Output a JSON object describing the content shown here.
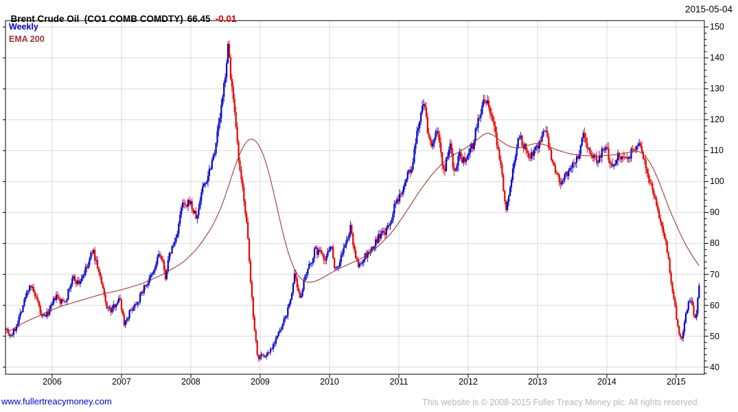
{
  "header": {
    "title_name": "Brent Crude Oil  (CO1 COMB COMDTY)",
    "last_price_label": "66.45",
    "change_label": "-0.01",
    "date": "2015-05-04"
  },
  "legend": {
    "series": "Weekly",
    "overlay": "EMA 200"
  },
  "footer": {
    "site_link": "www.fullertreacymoney.com",
    "copyright": "This website is © 2008-2015 Fuller Treacy Money plc. All rights reserved."
  },
  "colors": {
    "up": "#0000d0",
    "down": "#e80000",
    "ema": "#9c3a34",
    "grid": "#d8d8d8",
    "frame": "#000000",
    "title_text": "#000000",
    "change_text": "#dd0000",
    "legend_series": "#0000cc",
    "legend_overlay": "#993333",
    "link": "#0000cc",
    "copyright_text": "#b6b6b6"
  },
  "chart_data": {
    "type": "bar",
    "subtype": "weekly-ohlc-candles",
    "title": "Brent Crude Oil (CO1 COMB COMDTY)",
    "timeframe": "Weekly",
    "overlay": "EMA 200",
    "last_close": 66.45,
    "last_change": -0.01,
    "x_ticks": [
      2006,
      2007,
      2008,
      2009,
      2010,
      2011,
      2012,
      2013,
      2014,
      2015
    ],
    "y_ticks": [
      40,
      50,
      60,
      70,
      80,
      90,
      100,
      110,
      120,
      130,
      140,
      150
    ],
    "xlim": [
      2005.327,
      2015.406
    ],
    "ylim": [
      37.7,
      152.05
    ],
    "grid": true,
    "weeks": 522,
    "noise": 1.0,
    "close_path": [
      [
        2005.33,
        53
      ],
      [
        2005.4,
        50
      ],
      [
        2005.46,
        52
      ],
      [
        2005.55,
        58
      ],
      [
        2005.62,
        63
      ],
      [
        2005.68,
        67
      ],
      [
        2005.75,
        63
      ],
      [
        2005.8,
        60
      ],
      [
        2005.85,
        56
      ],
      [
        2005.92,
        57
      ],
      [
        2005.98,
        59
      ],
      [
        2006.05,
        63
      ],
      [
        2006.12,
        61
      ],
      [
        2006.2,
        62
      ],
      [
        2006.3,
        69
      ],
      [
        2006.38,
        67
      ],
      [
        2006.45,
        70
      ],
      [
        2006.52,
        73
      ],
      [
        2006.58,
        78
      ],
      [
        2006.65,
        73
      ],
      [
        2006.72,
        66
      ],
      [
        2006.78,
        60
      ],
      [
        2006.85,
        58
      ],
      [
        2006.92,
        61
      ],
      [
        2006.98,
        62
      ],
      [
        2007.04,
        54
      ],
      [
        2007.1,
        57
      ],
      [
        2007.18,
        60
      ],
      [
        2007.25,
        62
      ],
      [
        2007.33,
        66
      ],
      [
        2007.4,
        68
      ],
      [
        2007.47,
        71
      ],
      [
        2007.54,
        77
      ],
      [
        2007.6,
        73
      ],
      [
        2007.63,
        69
      ],
      [
        2007.7,
        77
      ],
      [
        2007.78,
        81
      ],
      [
        2007.84,
        88
      ],
      [
        2007.88,
        93
      ],
      [
        2007.93,
        91
      ],
      [
        2007.98,
        94
      ],
      [
        2008.04,
        90
      ],
      [
        2008.09,
        88
      ],
      [
        2008.16,
        98
      ],
      [
        2008.22,
        100
      ],
      [
        2008.28,
        105
      ],
      [
        2008.34,
        110
      ],
      [
        2008.4,
        118
      ],
      [
        2008.46,
        127
      ],
      [
        2008.51,
        138
      ],
      [
        2008.54,
        144
      ],
      [
        2008.58,
        133
      ],
      [
        2008.62,
        124
      ],
      [
        2008.66,
        114
      ],
      [
        2008.71,
        102
      ],
      [
        2008.76,
        96
      ],
      [
        2008.81,
        85
      ],
      [
        2008.86,
        68
      ],
      [
        2008.9,
        57
      ],
      [
        2008.94,
        48
      ],
      [
        2008.97,
        42
      ],
      [
        2009.01,
        45
      ],
      [
        2009.05,
        43
      ],
      [
        2009.09,
        44
      ],
      [
        2009.13,
        45
      ],
      [
        2009.18,
        47
      ],
      [
        2009.24,
        50
      ],
      [
        2009.3,
        52
      ],
      [
        2009.36,
        56
      ],
      [
        2009.42,
        60
      ],
      [
        2009.46,
        65
      ],
      [
        2009.5,
        70
      ],
      [
        2009.54,
        64
      ],
      [
        2009.58,
        63
      ],
      [
        2009.64,
        68
      ],
      [
        2009.7,
        72
      ],
      [
        2009.75,
        75
      ],
      [
        2009.79,
        78
      ],
      [
        2009.84,
        77
      ],
      [
        2009.89,
        78
      ],
      [
        2009.94,
        74
      ],
      [
        2009.98,
        78
      ],
      [
        2010.02,
        80
      ],
      [
        2010.07,
        73
      ],
      [
        2010.12,
        72
      ],
      [
        2010.18,
        77
      ],
      [
        2010.24,
        80
      ],
      [
        2010.3,
        85
      ],
      [
        2010.36,
        78
      ],
      [
        2010.41,
        72
      ],
      [
        2010.46,
        74
      ],
      [
        2010.52,
        76
      ],
      [
        2010.58,
        77
      ],
      [
        2010.64,
        79
      ],
      [
        2010.7,
        82
      ],
      [
        2010.76,
        83
      ],
      [
        2010.82,
        84
      ],
      [
        2010.88,
        87
      ],
      [
        2010.94,
        92
      ],
      [
        2010.99,
        94
      ],
      [
        2011.04,
        97
      ],
      [
        2011.09,
        101
      ],
      [
        2011.14,
        103
      ],
      [
        2011.19,
        104
      ],
      [
        2011.24,
        112
      ],
      [
        2011.29,
        119
      ],
      [
        2011.34,
        126
      ],
      [
        2011.38,
        123
      ],
      [
        2011.42,
        115
      ],
      [
        2011.47,
        112
      ],
      [
        2011.52,
        114
      ],
      [
        2011.56,
        118
      ],
      [
        2011.6,
        110
      ],
      [
        2011.65,
        103
      ],
      [
        2011.7,
        108
      ],
      [
        2011.74,
        112
      ],
      [
        2011.78,
        105
      ],
      [
        2011.83,
        104
      ],
      [
        2011.87,
        110
      ],
      [
        2011.92,
        107
      ],
      [
        2011.97,
        108
      ],
      [
        2012.02,
        111
      ],
      [
        2012.07,
        112
      ],
      [
        2012.12,
        118
      ],
      [
        2012.17,
        122
      ],
      [
        2012.22,
        125
      ],
      [
        2012.26,
        126
      ],
      [
        2012.31,
        123
      ],
      [
        2012.36,
        119
      ],
      [
        2012.41,
        113
      ],
      [
        2012.46,
        107
      ],
      [
        2012.51,
        98
      ],
      [
        2012.55,
        91
      ],
      [
        2012.6,
        98
      ],
      [
        2012.65,
        104
      ],
      [
        2012.7,
        112
      ],
      [
        2012.74,
        115
      ],
      [
        2012.79,
        112
      ],
      [
        2012.84,
        110
      ],
      [
        2012.89,
        108
      ],
      [
        2012.94,
        110
      ],
      [
        2012.99,
        111
      ],
      [
        2013.04,
        113
      ],
      [
        2013.09,
        117
      ],
      [
        2013.14,
        114
      ],
      [
        2013.19,
        108
      ],
      [
        2013.25,
        103
      ],
      [
        2013.3,
        101
      ],
      [
        2013.35,
        99
      ],
      [
        2013.41,
        102
      ],
      [
        2013.47,
        103
      ],
      [
        2013.53,
        106
      ],
      [
        2013.58,
        108
      ],
      [
        2013.63,
        112
      ],
      [
        2013.67,
        116
      ],
      [
        2013.72,
        112
      ],
      [
        2013.77,
        109
      ],
      [
        2013.83,
        107
      ],
      [
        2013.89,
        108
      ],
      [
        2013.94,
        110
      ],
      [
        2013.99,
        111
      ],
      [
        2014.04,
        107
      ],
      [
        2014.1,
        106
      ],
      [
        2014.16,
        109
      ],
      [
        2014.22,
        108
      ],
      [
        2014.28,
        107
      ],
      [
        2014.34,
        109
      ],
      [
        2014.4,
        110
      ],
      [
        2014.45,
        113
      ],
      [
        2014.5,
        110
      ],
      [
        2014.55,
        106
      ],
      [
        2014.6,
        102
      ],
      [
        2014.65,
        98
      ],
      [
        2014.7,
        93
      ],
      [
        2014.76,
        88
      ],
      [
        2014.82,
        83
      ],
      [
        2014.86,
        79
      ],
      [
        2014.9,
        72
      ],
      [
        2014.94,
        66
      ],
      [
        2014.98,
        60
      ],
      [
        2015.02,
        53
      ],
      [
        2015.05,
        50
      ],
      [
        2015.08,
        49
      ],
      [
        2015.11,
        53
      ],
      [
        2015.14,
        57
      ],
      [
        2015.18,
        61
      ],
      [
        2015.21,
        62
      ],
      [
        2015.24,
        59
      ],
      [
        2015.27,
        55
      ],
      [
        2015.29,
        57
      ],
      [
        2015.31,
        63
      ],
      [
        2015.33,
        66.45
      ]
    ],
    "ema_path": [
      [
        2005.33,
        51
      ],
      [
        2005.6,
        54.5
      ],
      [
        2005.85,
        57
      ],
      [
        2006.1,
        59.5
      ],
      [
        2006.4,
        61.5
      ],
      [
        2006.7,
        63.5
      ],
      [
        2007.0,
        65
      ],
      [
        2007.3,
        67
      ],
      [
        2007.6,
        70
      ],
      [
        2007.9,
        74
      ],
      [
        2008.1,
        78.5
      ],
      [
        2008.3,
        85
      ],
      [
        2008.45,
        92
      ],
      [
        2008.55,
        99
      ],
      [
        2008.65,
        106
      ],
      [
        2008.75,
        111.5
      ],
      [
        2008.85,
        114.5
      ],
      [
        2008.95,
        113.5
      ],
      [
        2009.05,
        109
      ],
      [
        2009.15,
        101
      ],
      [
        2009.25,
        91
      ],
      [
        2009.35,
        81
      ],
      [
        2009.45,
        73.5
      ],
      [
        2009.55,
        69
      ],
      [
        2009.65,
        67.3
      ],
      [
        2009.75,
        67.3
      ],
      [
        2009.85,
        68.2
      ],
      [
        2009.95,
        69.5
      ],
      [
        2010.1,
        71.5
      ],
      [
        2010.3,
        73.5
      ],
      [
        2010.5,
        75.5
      ],
      [
        2010.7,
        79
      ],
      [
        2010.9,
        83.5
      ],
      [
        2011.1,
        90
      ],
      [
        2011.3,
        97
      ],
      [
        2011.5,
        103
      ],
      [
        2011.7,
        107.5
      ],
      [
        2011.9,
        110
      ],
      [
        2012.05,
        112
      ],
      [
        2012.18,
        114.5
      ],
      [
        2012.28,
        116.3
      ],
      [
        2012.38,
        114.8
      ],
      [
        2012.5,
        112.5
      ],
      [
        2012.62,
        111
      ],
      [
        2012.75,
        110.8
      ],
      [
        2012.9,
        112
      ],
      [
        2013.02,
        112.6
      ],
      [
        2013.15,
        111.5
      ],
      [
        2013.3,
        110
      ],
      [
        2013.5,
        108.8
      ],
      [
        2013.7,
        108.3
      ],
      [
        2013.9,
        108.3
      ],
      [
        2014.1,
        108.6
      ],
      [
        2014.3,
        109.3
      ],
      [
        2014.42,
        110.2
      ],
      [
        2014.52,
        109.3
      ],
      [
        2014.62,
        106.5
      ],
      [
        2014.72,
        102
      ],
      [
        2014.82,
        96
      ],
      [
        2014.9,
        91
      ],
      [
        2015.0,
        86
      ],
      [
        2015.1,
        81
      ],
      [
        2015.2,
        77
      ],
      [
        2015.33,
        72.8
      ]
    ]
  }
}
